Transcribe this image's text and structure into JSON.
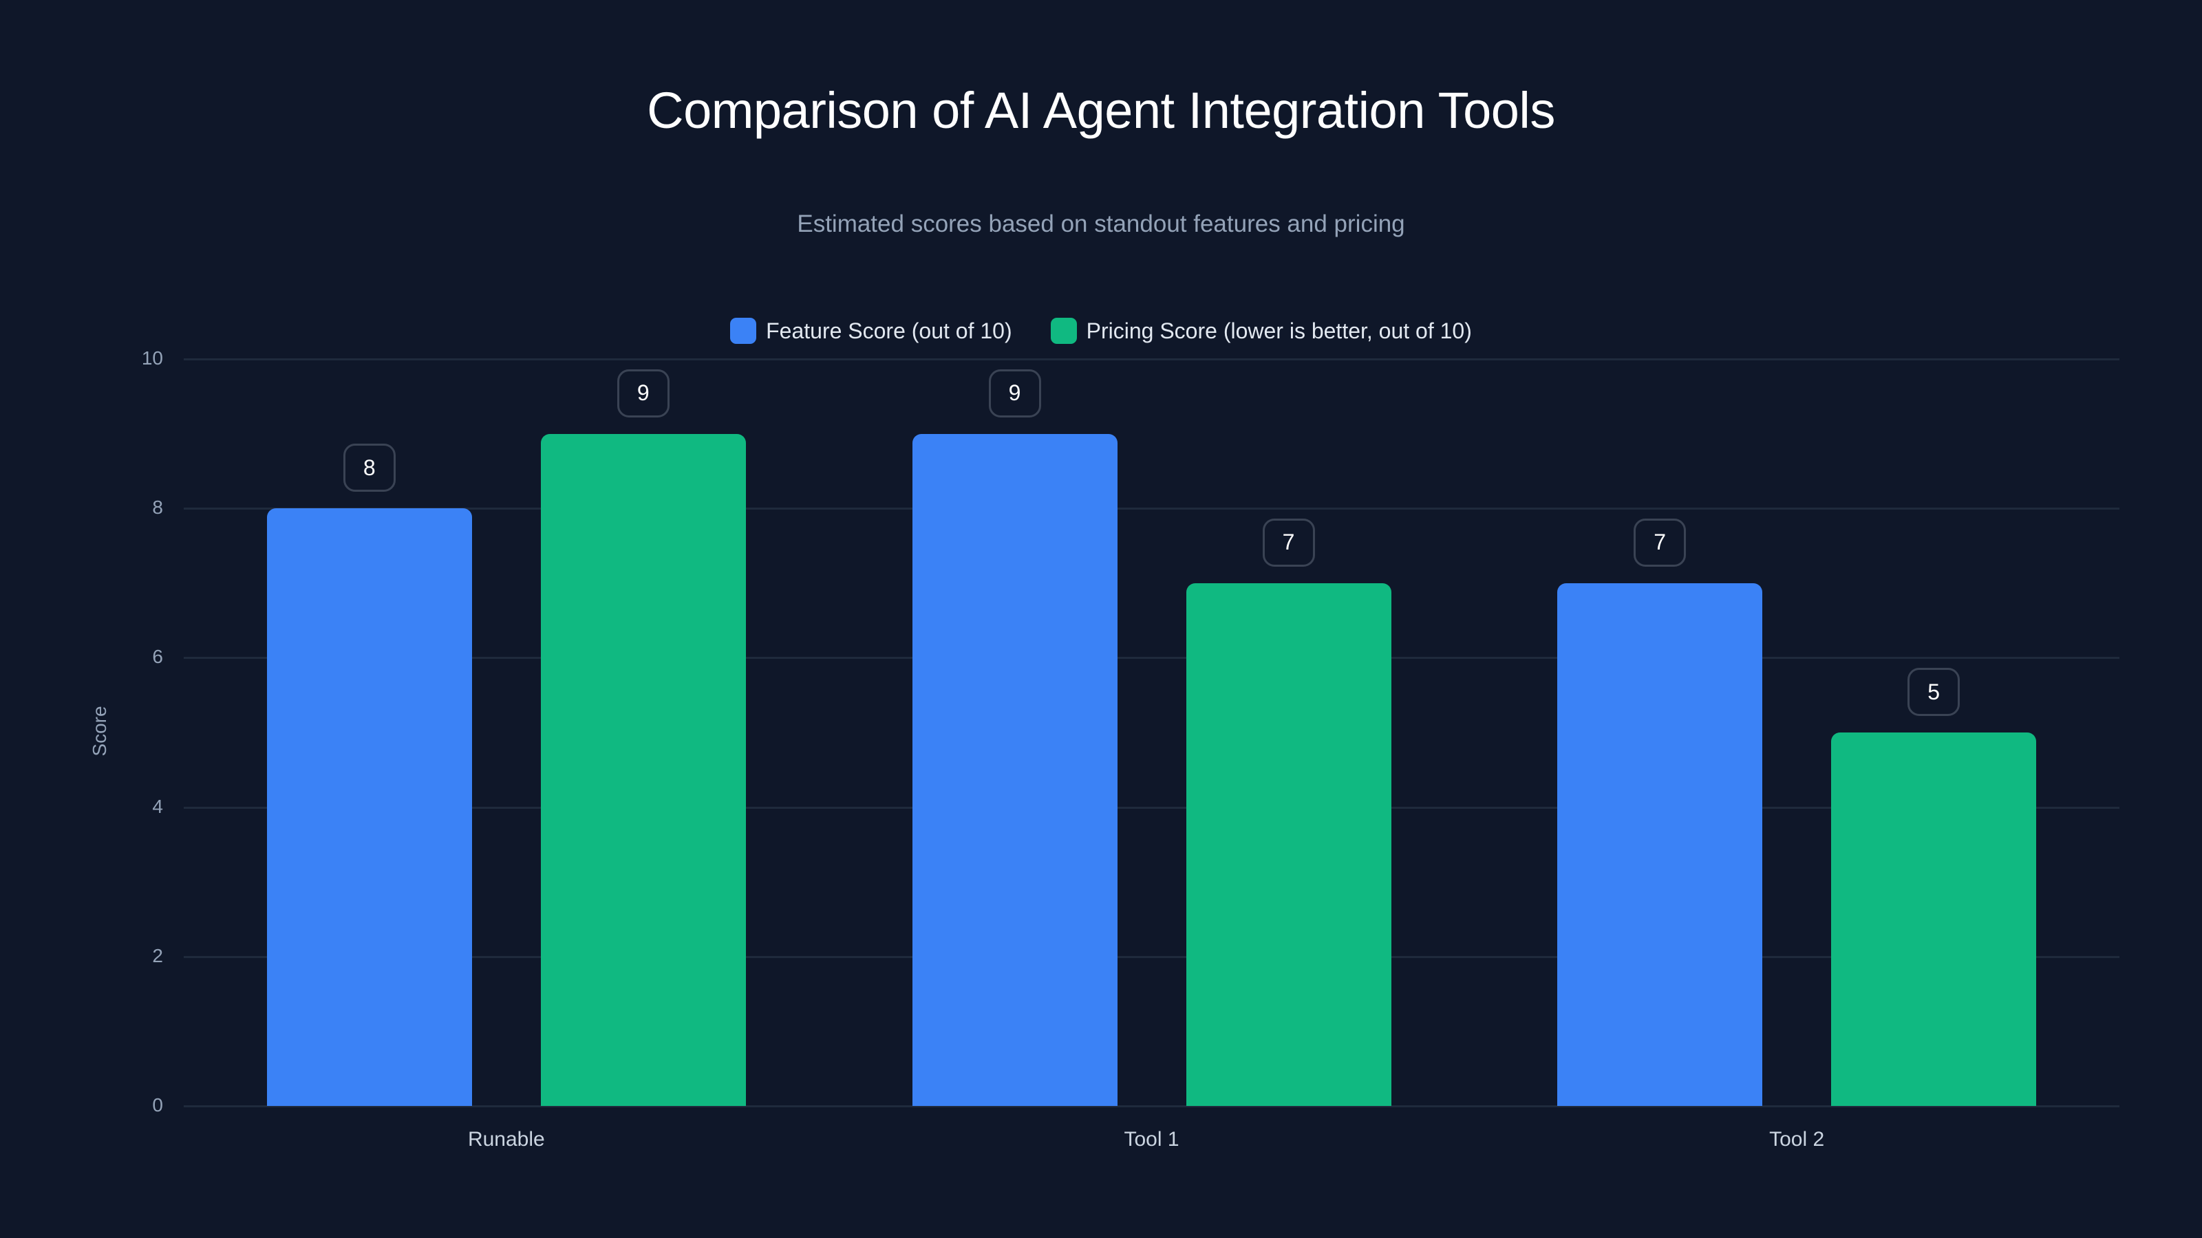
{
  "title": "Comparison of AI Agent Integration Tools",
  "subtitle": "Estimated scores based on standout features and pricing",
  "legend": [
    {
      "label": "Feature Score (out of 10)",
      "color": "#3b82f6"
    },
    {
      "label": "Pricing Score (lower is better, out of 10)",
      "color": "#10b981"
    }
  ],
  "y_axis": {
    "label": "Score",
    "ticks": [
      "0",
      "2",
      "4",
      "6",
      "8",
      "10"
    ]
  },
  "categories": [
    "Runable",
    "Tool 1",
    "Tool 2"
  ],
  "chart_data": {
    "type": "bar",
    "title": "Comparison of AI Agent Integration Tools",
    "subtitle": "Estimated scores based on standout features and pricing",
    "categories": [
      "Runable",
      "Tool 1",
      "Tool 2"
    ],
    "series": [
      {
        "name": "Feature Score (out of 10)",
        "color": "#3b82f6",
        "values": [
          8,
          9,
          7
        ]
      },
      {
        "name": "Pricing Score (lower is better, out of 10)",
        "color": "#10b981",
        "values": [
          9,
          7,
          5
        ]
      }
    ],
    "xlabel": "",
    "ylabel": "Score",
    "ylim": [
      0,
      10
    ],
    "yticks": [
      0,
      2,
      4,
      6,
      8,
      10
    ],
    "grid": true,
    "legend_position": "top",
    "data_labels": true
  }
}
